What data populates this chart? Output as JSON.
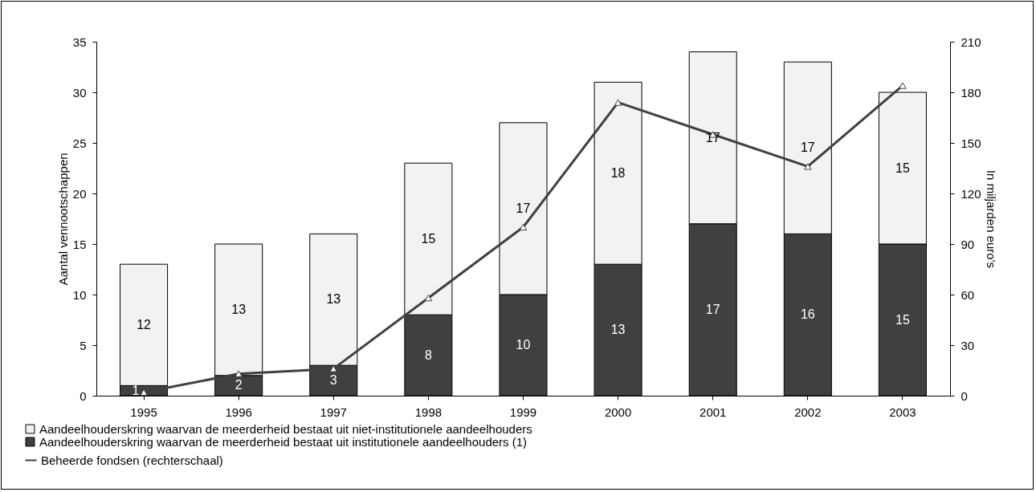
{
  "chart_data": {
    "type": "bar",
    "stacked": true,
    "categories": [
      "1995",
      "1996",
      "1997",
      "1998",
      "1999",
      "2000",
      "2001",
      "2002",
      "2003"
    ],
    "ylabel": "Aantal vennootschappen",
    "y2label": "In miljarden euro's",
    "ylim": [
      0,
      35
    ],
    "yticks": [
      0,
      5,
      10,
      15,
      20,
      25,
      30,
      35
    ],
    "y2lim": [
      0,
      210
    ],
    "y2ticks": [
      0,
      30,
      60,
      90,
      120,
      150,
      180,
      210
    ],
    "legend": "bottom",
    "grid": false,
    "marker": "triangle",
    "line_style": "solid",
    "series": [
      {
        "name": "Aandeelhouderskring waarvan de meerderheid bestaat uit institutionele aandeelhouders (1)",
        "color": "#404040",
        "values": [
          1,
          2,
          3,
          8,
          10,
          13,
          17,
          16,
          15
        ],
        "value_labels": [
          "1",
          "2",
          "3",
          "8",
          "10",
          "13",
          "17",
          "16",
          "15"
        ]
      },
      {
        "name": "Aandeelhouderskring waarvan de meerderheid bestaat uit niet-institutionele aandeelhouders",
        "color": "#f2f2f2",
        "values": [
          12,
          13,
          13,
          15,
          17,
          18,
          17,
          17,
          15
        ],
        "value_labels": [
          "12",
          "13",
          "13",
          "15",
          "17",
          "18",
          "17",
          "17",
          "15"
        ]
      },
      {
        "name": "Beheerde fondsen (rechterschaal)",
        "type": "line",
        "axis": "y2",
        "color": "#404040",
        "values": [
          2,
          13,
          16,
          58,
          100,
          174,
          155,
          136,
          184
        ]
      }
    ]
  }
}
